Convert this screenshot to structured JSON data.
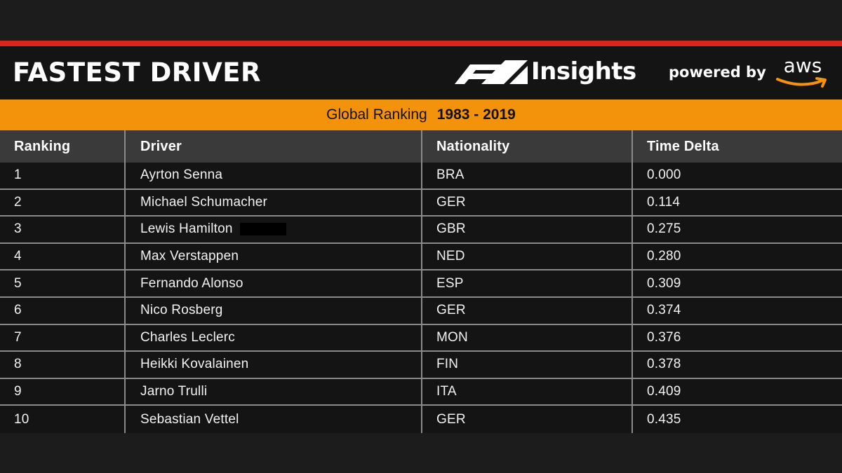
{
  "header": {
    "title": "FASTEST DRIVER",
    "brand": "Insights",
    "powered_by": "powered by",
    "aws": "aws"
  },
  "subheader": {
    "label": "Global Ranking",
    "range": "1983 - 2019"
  },
  "table": {
    "columns": [
      "Ranking",
      "Driver",
      "Nationality",
      "Time Delta"
    ],
    "rows": [
      [
        "1",
        "Ayrton Senna",
        "BRA",
        "0.000"
      ],
      [
        "2",
        "Michael Schumacher",
        "GER",
        "0.114"
      ],
      [
        "3",
        "Lewis Hamilton",
        "GBR",
        "0.275"
      ],
      [
        "4",
        "Max Verstappen",
        "NED",
        "0.280"
      ],
      [
        "5",
        "Fernando Alonso",
        "ESP",
        "0.309"
      ],
      [
        "6",
        "Nico Rosberg",
        "GER",
        "0.374"
      ],
      [
        "7",
        "Charles Leclerc",
        "MON",
        "0.376"
      ],
      [
        "8",
        "Heikki Kovalainen",
        "FIN",
        "0.378"
      ],
      [
        "9",
        "Jarno Trulli",
        "ITA",
        "0.409"
      ],
      [
        "10",
        "Sebastian Vettel",
        "GER",
        "0.435"
      ]
    ]
  },
  "colors": {
    "accent_red": "#d8261e",
    "accent_orange": "#f3920b",
    "background": "#1c1c1d"
  },
  "icons": [
    "f1-logo-icon",
    "aws-smile-icon"
  ]
}
